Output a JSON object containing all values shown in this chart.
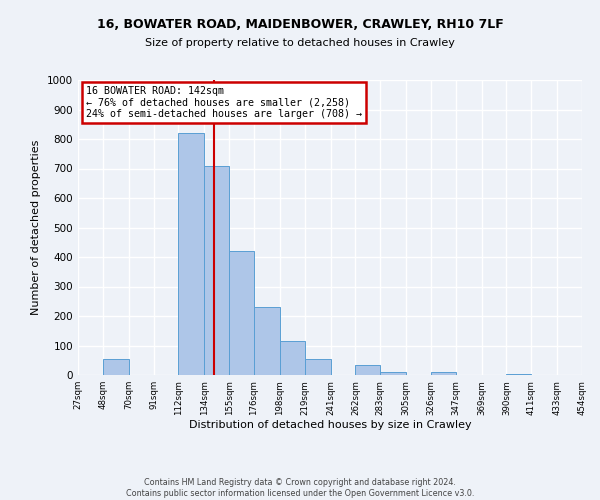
{
  "title1": "16, BOWATER ROAD, MAIDENBOWER, CRAWLEY, RH10 7LF",
  "title2": "Size of property relative to detached houses in Crawley",
  "xlabel": "Distribution of detached houses by size in Crawley",
  "ylabel": "Number of detached properties",
  "bar_left_edges": [
    27,
    48,
    70,
    91,
    112,
    134,
    155,
    176,
    198,
    219,
    241,
    262,
    283,
    305,
    326,
    347,
    369,
    390,
    411,
    433
  ],
  "bar_widths": [
    21,
    22,
    21,
    21,
    22,
    21,
    21,
    22,
    21,
    22,
    21,
    21,
    22,
    21,
    21,
    22,
    21,
    21,
    22,
    21
  ],
  "bar_heights": [
    0,
    55,
    0,
    0,
    820,
    710,
    420,
    230,
    115,
    55,
    0,
    35,
    10,
    0,
    10,
    0,
    0,
    5,
    0,
    0
  ],
  "bar_color": "#aec6e8",
  "bar_edge_color": "#5a9fd4",
  "vline_x": 142,
  "vline_color": "#cc0000",
  "annotation_box_text": "16 BOWATER ROAD: 142sqm\n← 76% of detached houses are smaller (2,258)\n24% of semi-detached houses are larger (708) →",
  "annotation_box_color": "#cc0000",
  "annotation_box_bg": "#ffffff",
  "xlim_left": 27,
  "xlim_right": 454,
  "ylim_top": 1000,
  "tick_labels": [
    "27sqm",
    "48sqm",
    "70sqm",
    "91sqm",
    "112sqm",
    "134sqm",
    "155sqm",
    "176sqm",
    "198sqm",
    "219sqm",
    "241sqm",
    "262sqm",
    "283sqm",
    "305sqm",
    "326sqm",
    "347sqm",
    "369sqm",
    "390sqm",
    "411sqm",
    "433sqm",
    "454sqm"
  ],
  "tick_positions": [
    27,
    48,
    70,
    91,
    112,
    134,
    155,
    176,
    198,
    219,
    241,
    262,
    283,
    305,
    326,
    347,
    369,
    390,
    411,
    433,
    454
  ],
  "yticks": [
    0,
    100,
    200,
    300,
    400,
    500,
    600,
    700,
    800,
    900,
    1000
  ],
  "footnote": "Contains HM Land Registry data © Crown copyright and database right 2024.\nContains public sector information licensed under the Open Government Licence v3.0.",
  "bg_color": "#eef2f8",
  "plot_bg_color": "#eef2f8"
}
